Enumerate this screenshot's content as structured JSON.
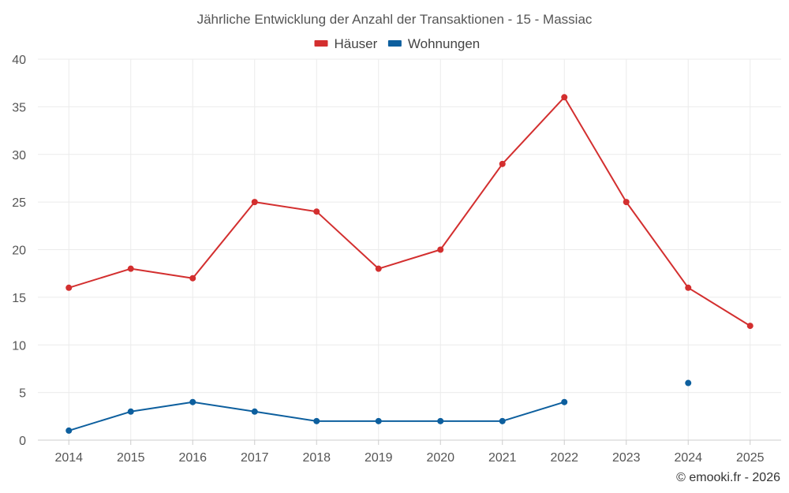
{
  "chart_data": {
    "type": "line",
    "title": "Jährliche Entwicklung der Anzahl der Transaktionen - 15 - Massiac",
    "categories": [
      "2014",
      "2015",
      "2016",
      "2017",
      "2018",
      "2019",
      "2020",
      "2021",
      "2022",
      "2023",
      "2024",
      "2025"
    ],
    "series": [
      {
        "name": "Häuser",
        "color": "#d32f2f",
        "values": [
          16,
          18,
          17,
          25,
          24,
          18,
          20,
          29,
          36,
          25,
          16,
          12
        ]
      },
      {
        "name": "Wohnungen",
        "color": "#0d5f9e",
        "values": [
          1,
          3,
          4,
          3,
          2,
          2,
          2,
          2,
          4,
          null,
          6,
          null
        ]
      }
    ],
    "xlabel": "",
    "ylabel": "",
    "ylim": [
      0,
      40
    ],
    "yticks": [
      0,
      5,
      10,
      15,
      20,
      25,
      30,
      35,
      40
    ],
    "grid": true,
    "legend_position": "top-center"
  },
  "credit": "© emooki.fr - 2026"
}
